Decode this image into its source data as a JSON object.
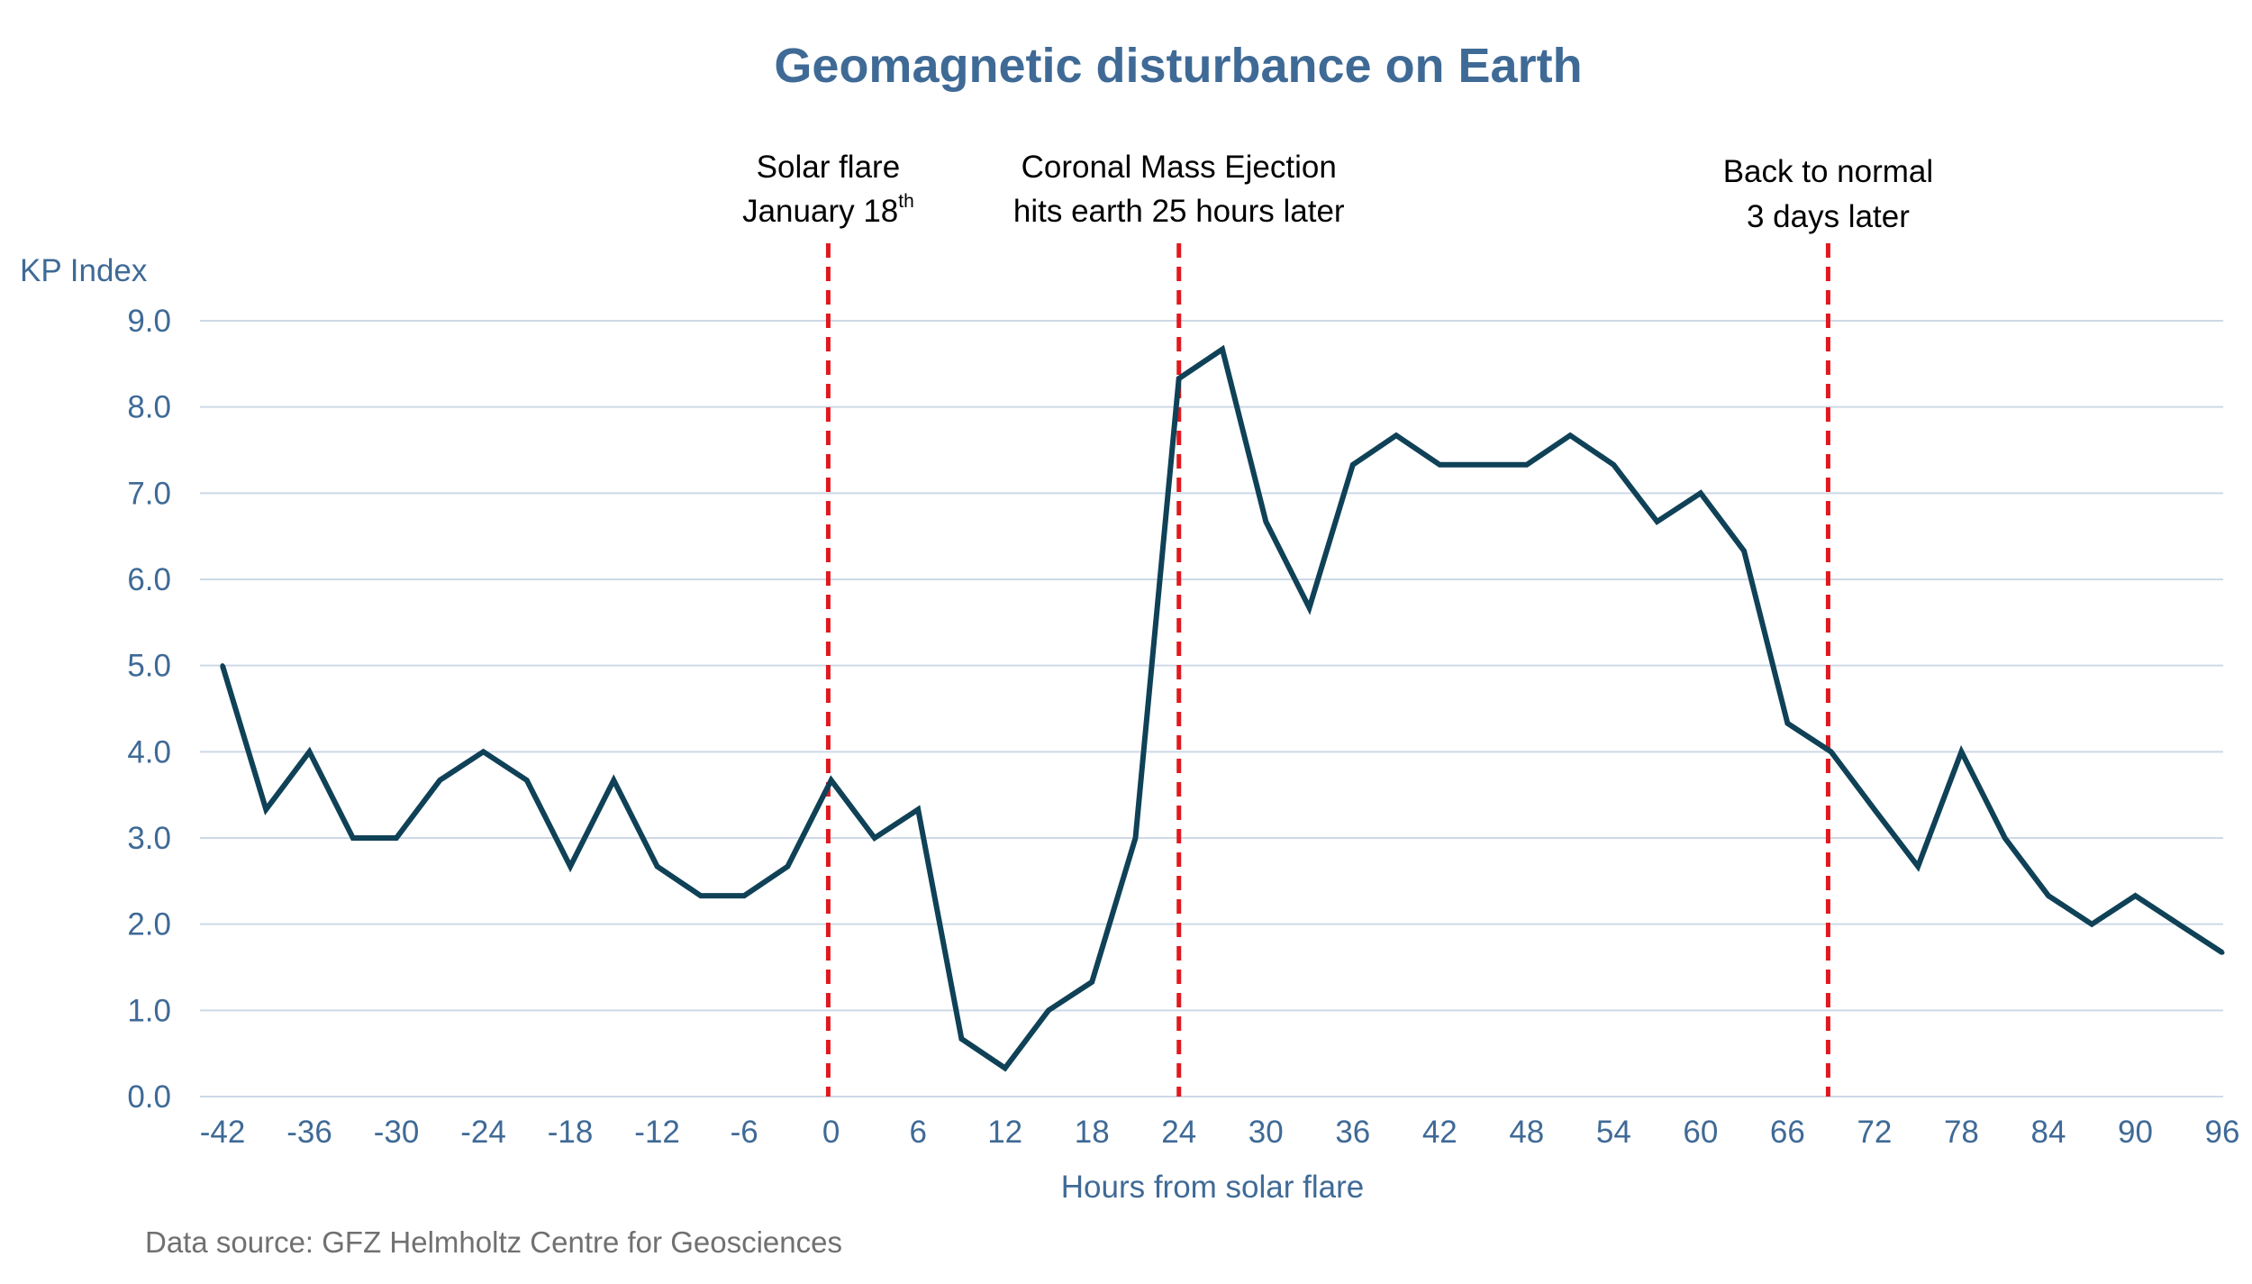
{
  "chart_data": {
    "type": "line",
    "title": "Geomagnetic disturbance on Earth",
    "ylabel": "KP Index",
    "xlabel": "Hours from solar flare",
    "ylim": [
      0,
      9
    ],
    "xlim": [
      -42,
      96
    ],
    "y_ticks": [
      "0.0",
      "1.0",
      "2.0",
      "3.0",
      "4.0",
      "5.0",
      "6.0",
      "7.0",
      "8.0",
      "9.0"
    ],
    "x_ticks": [
      "-42",
      "-36",
      "-30",
      "-24",
      "-18",
      "-12",
      "-6",
      "0",
      "6",
      "12",
      "18",
      "24",
      "30",
      "36",
      "42",
      "48",
      "54",
      "60",
      "66",
      "72",
      "78",
      "84",
      "90",
      "96"
    ],
    "grid": true,
    "series": [
      {
        "name": "KP Index",
        "color": "#0f4157",
        "x": [
          -42,
          -39,
          -36,
          -33,
          -30,
          -27,
          -24,
          -21,
          -18,
          -15,
          -12,
          -9,
          -6,
          -3,
          0,
          3,
          6,
          9,
          12,
          15,
          18,
          21,
          24,
          27,
          30,
          33,
          36,
          39,
          42,
          45,
          48,
          51,
          54,
          57,
          60,
          63,
          66,
          69,
          72,
          75,
          78,
          81,
          84,
          87,
          90,
          93,
          96
        ],
        "values": [
          5.0,
          3.33,
          4.0,
          3.0,
          3.0,
          3.67,
          4.0,
          3.67,
          2.67,
          3.67,
          2.67,
          2.33,
          2.33,
          2.67,
          3.67,
          3.0,
          3.33,
          0.67,
          0.33,
          1.0,
          1.33,
          3.0,
          8.33,
          8.67,
          6.67,
          5.67,
          7.33,
          7.67,
          7.33,
          7.33,
          7.33,
          7.67,
          7.33,
          6.67,
          7.0,
          6.33,
          4.33,
          4.0,
          3.33,
          2.67,
          4.0,
          3.0,
          2.33,
          2.0,
          2.33,
          2.0,
          1.67
        ]
      }
    ],
    "annotations": [
      {
        "x": -0.2,
        "line1": "Solar flare",
        "line2": "January 18",
        "line2_sup": "th"
      },
      {
        "x": 24,
        "line1": "Coronal Mass Ejection",
        "line2": "hits earth 25 hours later",
        "line2_sup": ""
      },
      {
        "x": 68.8,
        "line1": "Back to normal",
        "line2": "3 days later",
        "line2_sup": ""
      }
    ],
    "source": "Data source: GFZ Helmholtz Centre for Geosciences"
  },
  "colors": {
    "title": "#3f6a96",
    "axis_text": "#3f6a96",
    "source": "#707070",
    "grid": "#cdd9e6",
    "line": "#0f4157",
    "marker_line": "#e0191f"
  }
}
